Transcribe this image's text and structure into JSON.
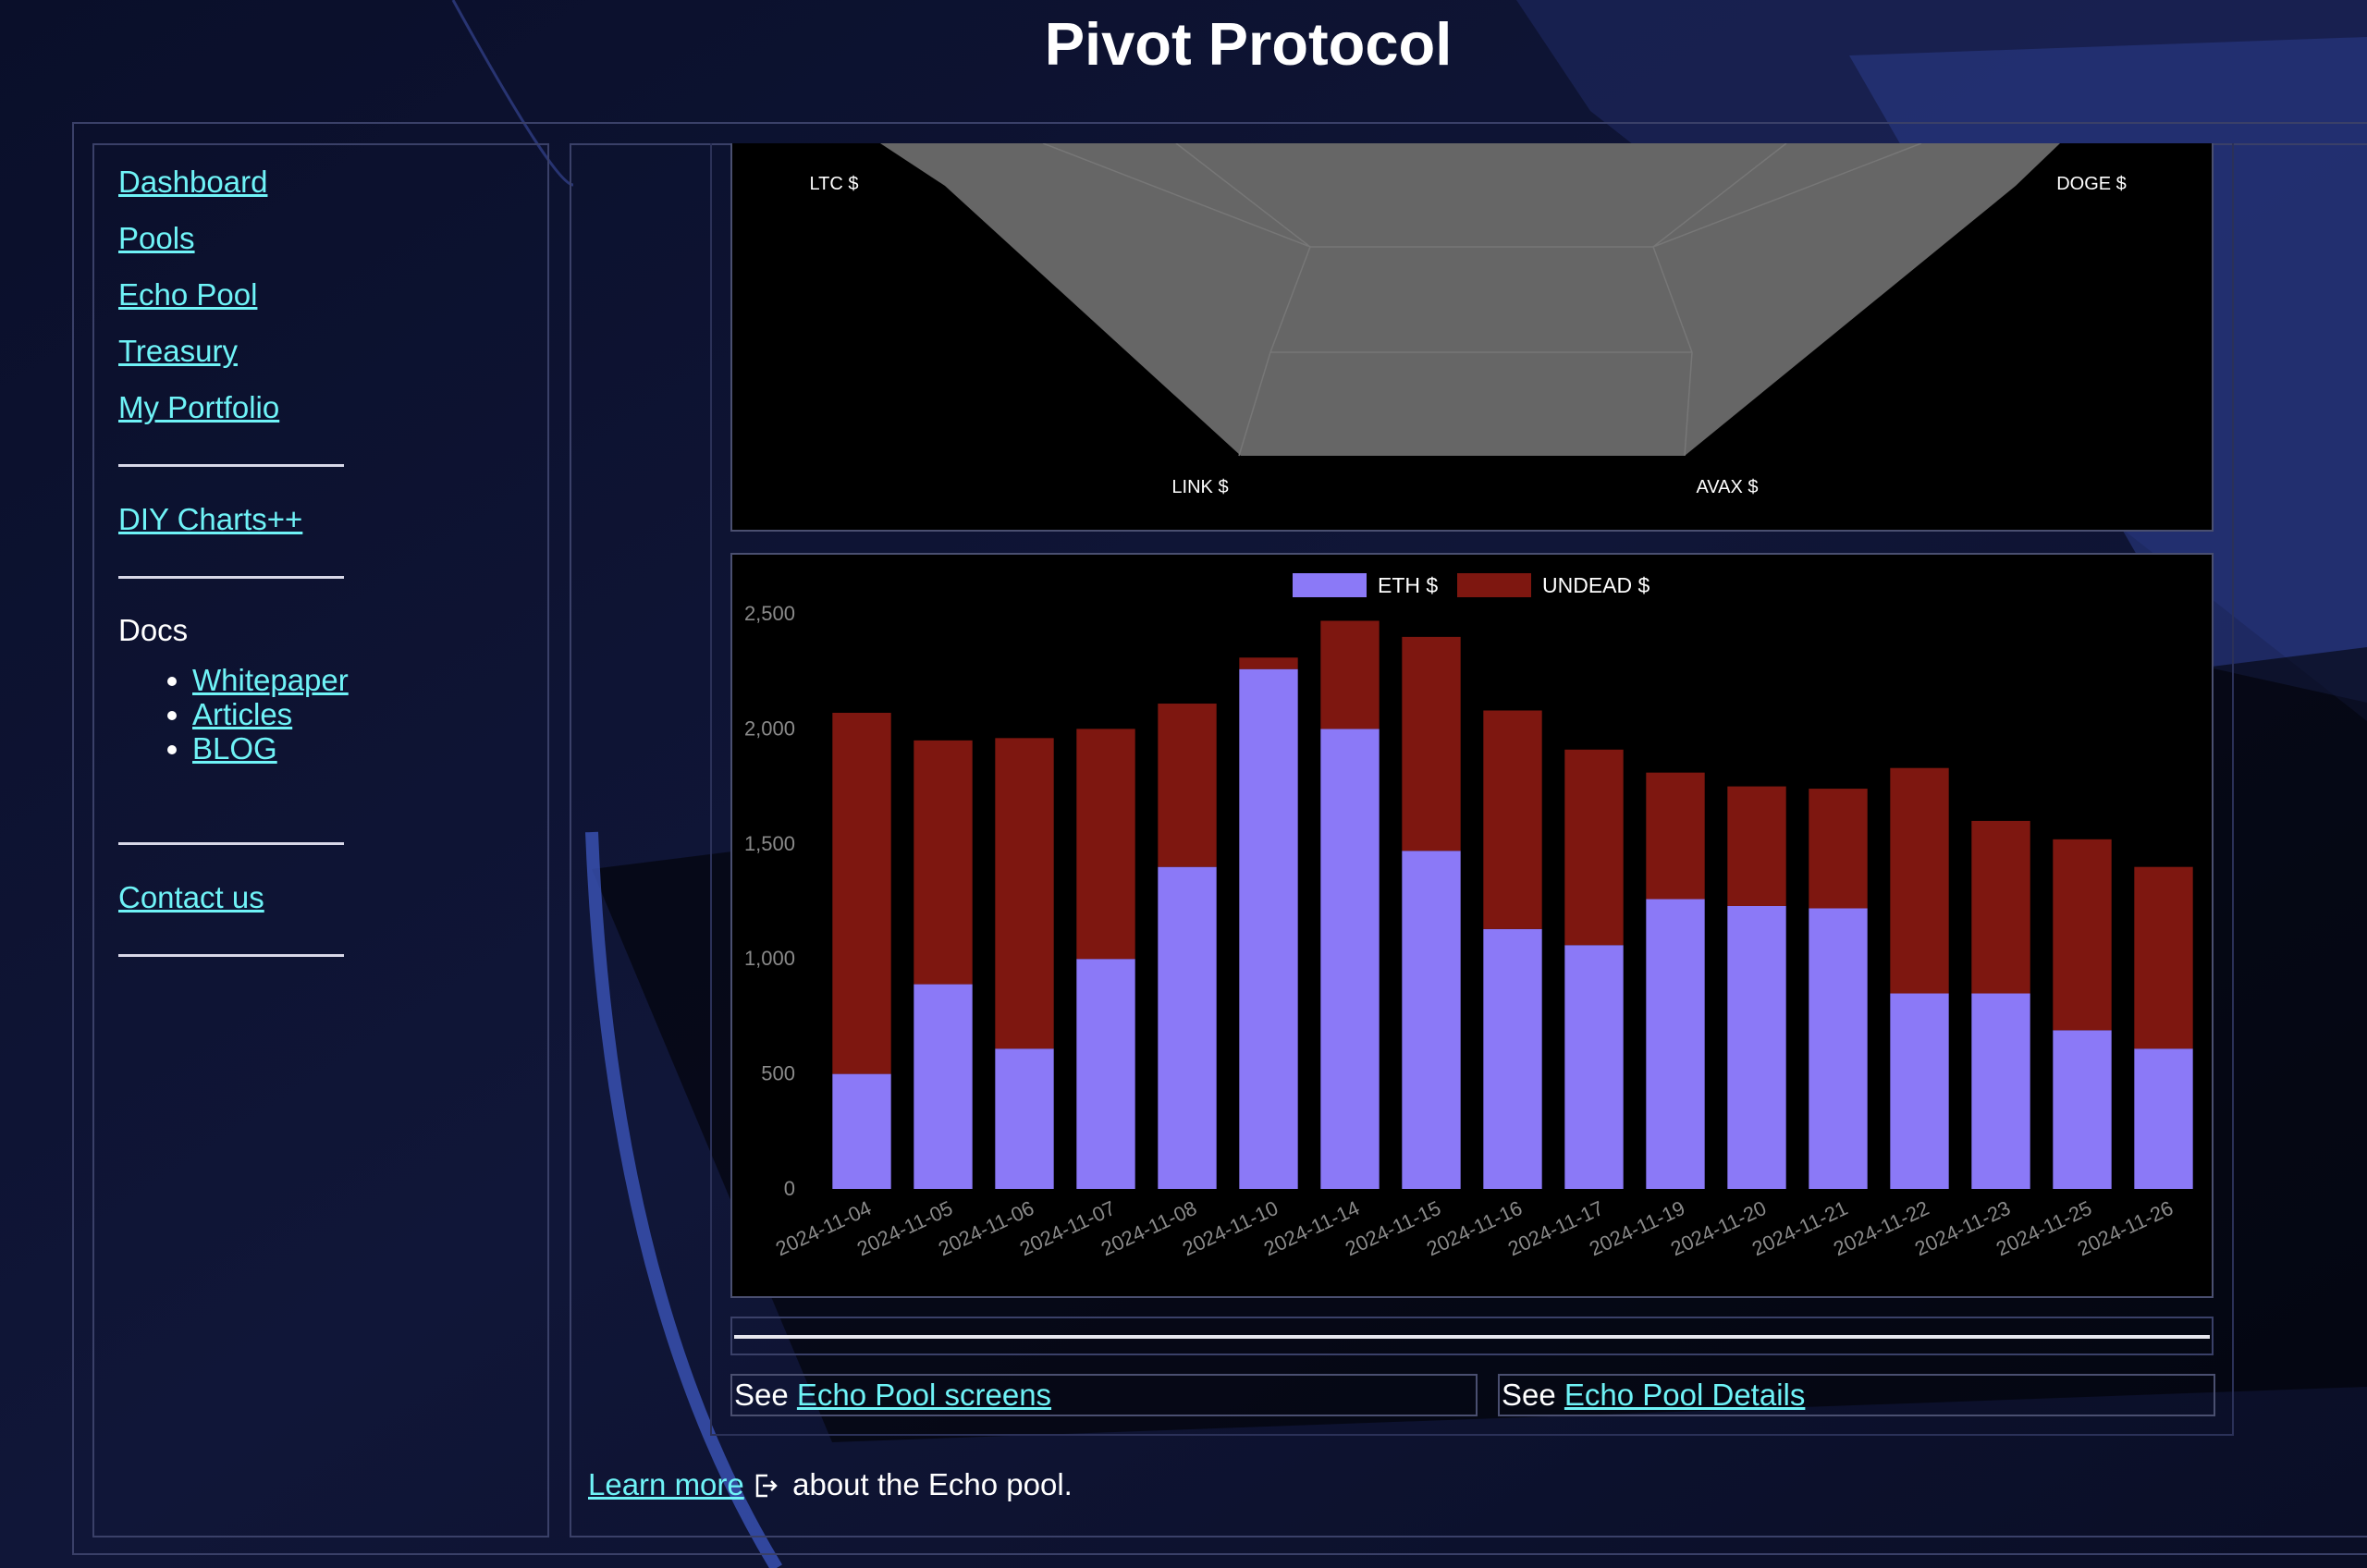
{
  "app": {
    "title": "Pivot Protocol"
  },
  "sidebar": {
    "nav": [
      {
        "label": "Dashboard"
      },
      {
        "label": "Pools"
      },
      {
        "label": "Echo Pool"
      },
      {
        "label": "Treasury"
      },
      {
        "label": "My Portfolio"
      },
      {
        "label": "DIY Charts++"
      }
    ],
    "docs_label": "Docs",
    "docs_links": [
      {
        "label": "Whitepaper"
      },
      {
        "label": "Articles"
      },
      {
        "label": "BLOG"
      }
    ],
    "contact_label": "Contact us"
  },
  "main": {
    "see_screens": {
      "prefix": "See",
      "link": "Echo Pool screens"
    },
    "see_details": {
      "prefix": "See",
      "link": "Echo Pool Details"
    },
    "learn_more": {
      "link": "Learn more",
      "suffix": "about the Echo pool."
    }
  },
  "icons": {
    "external_link": "external-link-icon"
  },
  "colors": {
    "link": "#6ff3f7",
    "eth": "#8b79f7",
    "undead": "#7e1710",
    "radar_fill": "#666666"
  },
  "chart_data": [
    {
      "type": "radar",
      "axes_visible": [
        "LTC $",
        "DOGE $",
        "LINK $",
        "AVAX $"
      ],
      "note": "partially scrolled out of view; only lower portion visible"
    },
    {
      "type": "bar",
      "stacked": true,
      "categories": [
        "2024-11-04",
        "2024-11-05",
        "2024-11-06",
        "2024-11-07",
        "2024-11-08",
        "2024-11-10",
        "2024-11-14",
        "2024-11-15",
        "2024-11-16",
        "2024-11-17",
        "2024-11-19",
        "2024-11-20",
        "2024-11-21",
        "2024-11-22",
        "2024-11-23",
        "2024-11-25",
        "2024-11-26"
      ],
      "series": [
        {
          "name": "ETH $",
          "color": "#8b79f7",
          "values": [
            500,
            890,
            610,
            1000,
            1400,
            2260,
            2000,
            1470,
            1130,
            1060,
            1260,
            1230,
            1220,
            850,
            850,
            690,
            610
          ]
        },
        {
          "name": "UNDEAD $",
          "color": "#7e1710",
          "values": [
            1570,
            1060,
            1350,
            1000,
            710,
            50,
            470,
            930,
            950,
            850,
            550,
            520,
            520,
            980,
            750,
            830,
            790
          ]
        }
      ],
      "ylim": [
        0,
        2500
      ],
      "yticks": [
        "0",
        "500",
        "1,000",
        "1,500",
        "2,000",
        "2,500"
      ],
      "legend": "top-center",
      "grid": false
    }
  ]
}
